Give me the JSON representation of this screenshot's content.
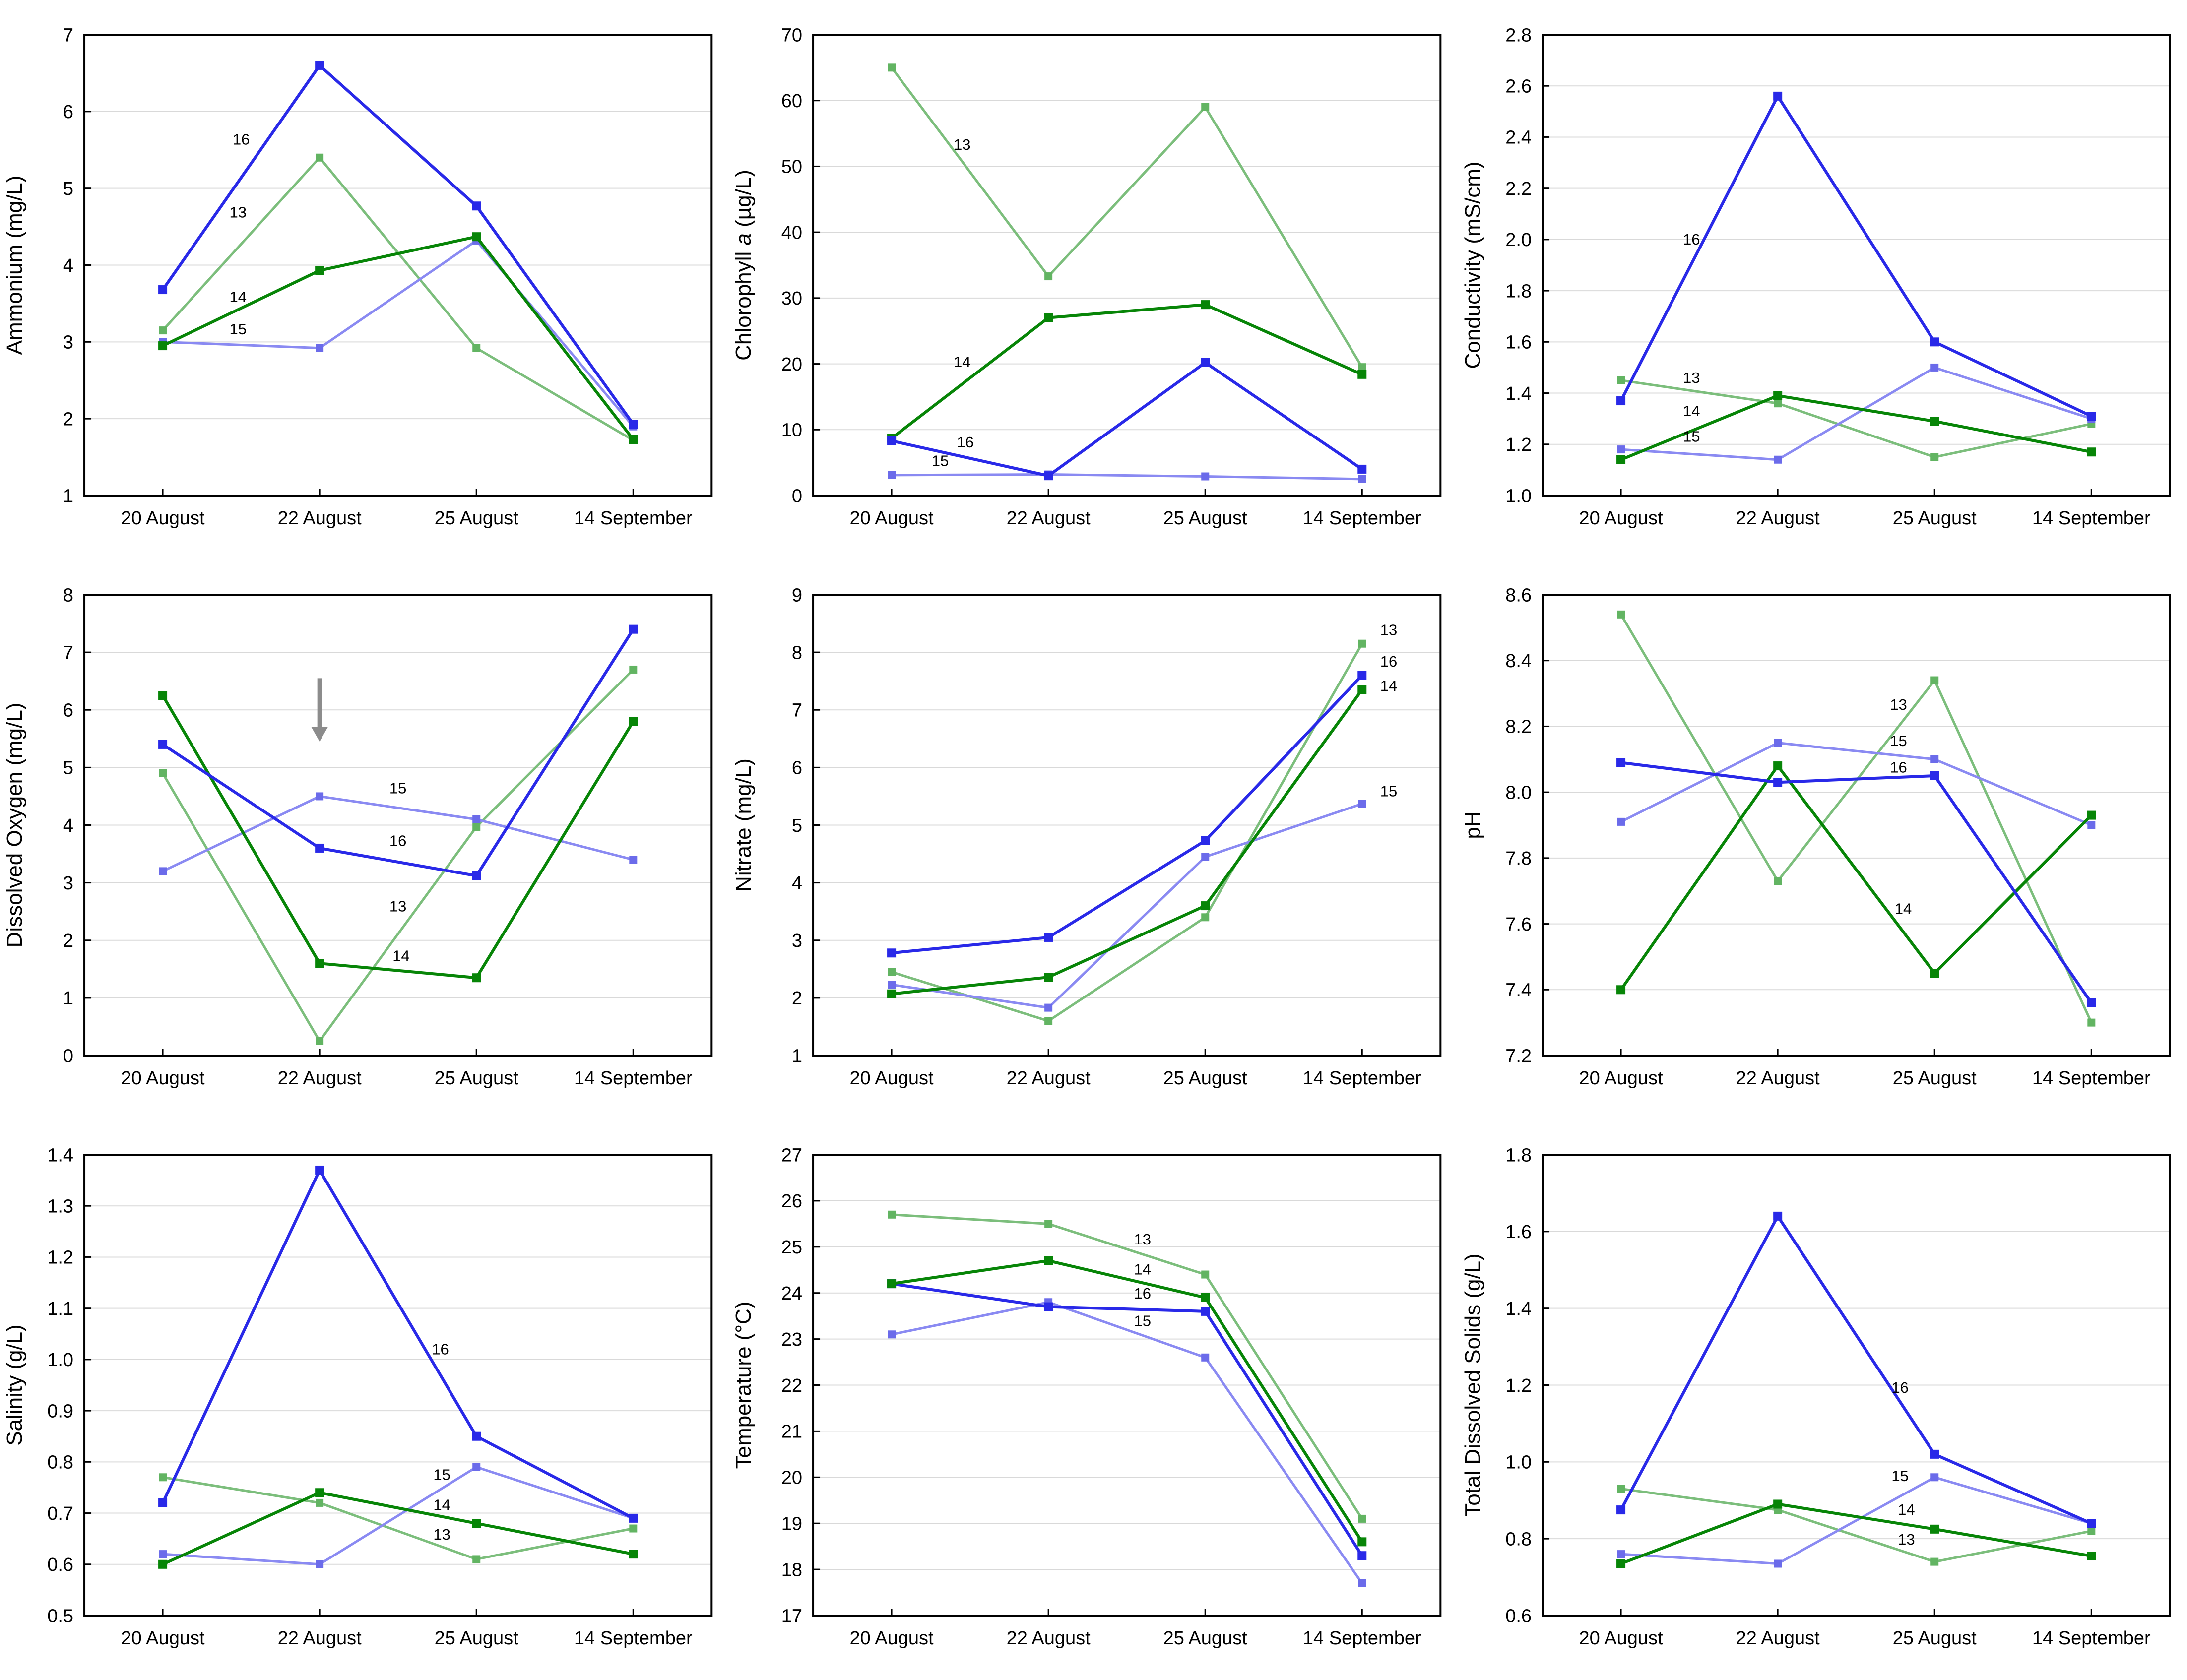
{
  "figure": {
    "background": "#ffffff",
    "x_categories": [
      "20 August",
      "22 August",
      "25 August",
      "14 September"
    ],
    "sites": {
      "13": {
        "line_color": "#7CBE7C",
        "marker_color": "#62B462",
        "line_width": 5,
        "marker_size": 16
      },
      "14": {
        "line_color": "#078507",
        "marker_color": "#078507",
        "line_width": 6,
        "marker_size": 18
      },
      "15": {
        "line_color": "#8A8AF2",
        "marker_color": "#6B6BEA",
        "line_width": 5,
        "marker_size": 16
      },
      "16": {
        "line_color": "#2929E8",
        "marker_color": "#2929E8",
        "line_width": 6,
        "marker_size": 18
      }
    },
    "grid_color": "#D9D9D9",
    "axis_color": "#000000",
    "annotation_arrow_color": "#8C8C8C",
    "label_color": "#1A1A1A"
  },
  "chart_data": [
    {
      "id": "ammonium",
      "type": "line",
      "ylabel_parts": [
        {
          "text": "Ammonium (mg/L)"
        }
      ],
      "ylim": [
        1,
        7
      ],
      "ytick_step": 1,
      "ytick_decimals": 0,
      "categories": [
        "20 August",
        "22 August",
        "25 August",
        "14 September"
      ],
      "series": [
        {
          "site": "13",
          "values": [
            3.15,
            5.4,
            2.92,
            1.72
          ]
        },
        {
          "site": "15",
          "values": [
            3.0,
            2.92,
            4.32,
            1.9
          ]
        },
        {
          "site": "14",
          "values": [
            2.95,
            3.93,
            4.37,
            1.73
          ]
        },
        {
          "site": "16",
          "values": [
            3.68,
            6.6,
            4.77,
            1.93
          ]
        }
      ],
      "point_labels": [
        {
          "text": "16",
          "x": 0.5,
          "y": 5.57
        },
        {
          "text": "13",
          "x": 0.48,
          "y": 4.62
        },
        {
          "text": "14",
          "x": 0.48,
          "y": 3.52
        },
        {
          "text": "15",
          "x": 0.48,
          "y": 3.1
        }
      ]
    },
    {
      "id": "chlorophyll",
      "type": "line",
      "ylabel_parts": [
        {
          "text": "Chlorophyll "
        },
        {
          "text": "a",
          "italic": true
        },
        {
          "text": " (µg/L)"
        }
      ],
      "ylim": [
        0,
        70
      ],
      "ytick_step": 10,
      "ytick_decimals": 0,
      "categories": [
        "20 August",
        "22 August",
        "25 August",
        "14 September"
      ],
      "series": [
        {
          "site": "13",
          "values": [
            65,
            33.3,
            59,
            19.5
          ]
        },
        {
          "site": "15",
          "values": [
            3.1,
            3.2,
            2.9,
            2.5
          ]
        },
        {
          "site": "14",
          "values": [
            8.7,
            27,
            29,
            18.4
          ]
        },
        {
          "site": "16",
          "values": [
            8.3,
            3.0,
            20.2,
            4.0
          ]
        }
      ],
      "point_labels": [
        {
          "text": "13",
          "x": 0.45,
          "y": 52.5
        },
        {
          "text": "14",
          "x": 0.45,
          "y": 19.5
        },
        {
          "text": "16",
          "x": 0.47,
          "y": 7.3
        },
        {
          "text": "15",
          "x": 0.31,
          "y": 4.5
        }
      ]
    },
    {
      "id": "conductivity",
      "type": "line",
      "ylabel_parts": [
        {
          "text": "Conductivity (mS/cm)"
        }
      ],
      "ylim": [
        1.0,
        2.8
      ],
      "ytick_step": 0.2,
      "ytick_decimals": 1,
      "categories": [
        "20 August",
        "22 August",
        "25 August",
        "14 September"
      ],
      "series": [
        {
          "site": "13",
          "values": [
            1.45,
            1.36,
            1.15,
            1.28
          ]
        },
        {
          "site": "15",
          "values": [
            1.18,
            1.14,
            1.5,
            1.3
          ]
        },
        {
          "site": "14",
          "values": [
            1.14,
            1.39,
            1.29,
            1.17
          ]
        },
        {
          "site": "16",
          "values": [
            1.37,
            2.56,
            1.6,
            1.31
          ]
        }
      ],
      "point_labels": [
        {
          "text": "16",
          "x": 0.45,
          "y": 1.98
        },
        {
          "text": "13",
          "x": 0.45,
          "y": 1.44
        },
        {
          "text": "14",
          "x": 0.45,
          "y": 1.31
        },
        {
          "text": "15",
          "x": 0.45,
          "y": 1.21
        }
      ]
    },
    {
      "id": "dissolved-oxygen",
      "type": "line",
      "ylabel_parts": [
        {
          "text": "Dissolved Oxygen (mg/L)"
        }
      ],
      "ylim": [
        0,
        8
      ],
      "ytick_step": 1,
      "ytick_decimals": 0,
      "categories": [
        "20 August",
        "22 August",
        "25 August",
        "14 September"
      ],
      "series": [
        {
          "site": "13",
          "values": [
            4.9,
            0.25,
            3.97,
            6.7
          ]
        },
        {
          "site": "15",
          "values": [
            3.2,
            4.5,
            4.1,
            3.4
          ]
        },
        {
          "site": "14",
          "values": [
            6.25,
            1.6,
            1.35,
            5.8
          ]
        },
        {
          "site": "16",
          "values": [
            5.4,
            3.6,
            3.12,
            7.4
          ]
        }
      ],
      "point_labels": [
        {
          "text": "15",
          "x": 1.5,
          "y": 4.55
        },
        {
          "text": "16",
          "x": 1.5,
          "y": 3.64
        },
        {
          "text": "13",
          "x": 1.5,
          "y": 2.5
        },
        {
          "text": "14",
          "x": 1.52,
          "y": 1.64
        }
      ],
      "annotations": [
        {
          "type": "down-arrow",
          "x": 1,
          "y_from": 6.55,
          "y_to": 5.45
        }
      ]
    },
    {
      "id": "nitrate",
      "type": "line",
      "ylabel_parts": [
        {
          "text": "Nitrate (mg/L)"
        }
      ],
      "ylim": [
        1,
        9
      ],
      "ytick_step": 1,
      "ytick_decimals": 0,
      "categories": [
        "20 August",
        "22 August",
        "25 August",
        "14 September"
      ],
      "series": [
        {
          "site": "13",
          "values": [
            2.45,
            1.6,
            3.4,
            8.15
          ]
        },
        {
          "site": "15",
          "values": [
            2.23,
            1.83,
            4.45,
            5.37
          ]
        },
        {
          "site": "14",
          "values": [
            2.07,
            2.36,
            3.6,
            7.35
          ]
        },
        {
          "site": "16",
          "values": [
            2.78,
            3.05,
            4.73,
            7.6
          ]
        }
      ],
      "point_labels": [
        {
          "text": "13",
          "x": 3.17,
          "y": 8.3
        },
        {
          "text": "16",
          "x": 3.17,
          "y": 7.75
        },
        {
          "text": "14",
          "x": 3.17,
          "y": 7.33
        },
        {
          "text": "15",
          "x": 3.17,
          "y": 5.5
        }
      ]
    },
    {
      "id": "ph",
      "type": "line",
      "ylabel_parts": [
        {
          "text": "pH"
        }
      ],
      "ylim": [
        7.2,
        8.6
      ],
      "ytick_step": 0.2,
      "ytick_decimals": 1,
      "categories": [
        "20 August",
        "22 August",
        "25 August",
        "14 September"
      ],
      "series": [
        {
          "site": "13",
          "values": [
            8.54,
            7.73,
            8.34,
            7.3
          ]
        },
        {
          "site": "15",
          "values": [
            7.91,
            8.15,
            8.1,
            7.9
          ]
        },
        {
          "site": "14",
          "values": [
            7.4,
            8.08,
            7.45,
            7.93
          ]
        },
        {
          "site": "16",
          "values": [
            8.09,
            8.03,
            8.05,
            7.36
          ]
        }
      ],
      "point_labels": [
        {
          "text": "13",
          "x": 1.77,
          "y": 8.25
        },
        {
          "text": "15",
          "x": 1.77,
          "y": 8.14
        },
        {
          "text": "16",
          "x": 1.77,
          "y": 8.06
        },
        {
          "text": "14",
          "x": 1.8,
          "y": 7.63
        }
      ]
    },
    {
      "id": "salinity",
      "type": "line",
      "ylabel_parts": [
        {
          "text": "Salinity (g/L)"
        }
      ],
      "ylim": [
        0.5,
        1.4
      ],
      "ytick_step": 0.1,
      "ytick_decimals": 1,
      "categories": [
        "20 August",
        "22 August",
        "25 August",
        "14 September"
      ],
      "series": [
        {
          "site": "13",
          "values": [
            0.77,
            0.72,
            0.61,
            0.67
          ]
        },
        {
          "site": "15",
          "values": [
            0.62,
            0.6,
            0.79,
            0.69
          ]
        },
        {
          "site": "14",
          "values": [
            0.6,
            0.74,
            0.68,
            0.62
          ]
        },
        {
          "site": "16",
          "values": [
            0.72,
            1.37,
            0.85,
            0.69
          ]
        }
      ],
      "point_labels": [
        {
          "text": "16",
          "x": 1.77,
          "y": 1.01
        },
        {
          "text": "15",
          "x": 1.78,
          "y": 0.765
        },
        {
          "text": "14",
          "x": 1.78,
          "y": 0.706
        },
        {
          "text": "13",
          "x": 1.78,
          "y": 0.648
        }
      ]
    },
    {
      "id": "temperature",
      "type": "line",
      "ylabel_parts": [
        {
          "text": "Temperature (°C)"
        }
      ],
      "ylim": [
        17,
        27
      ],
      "ytick_step": 1,
      "ytick_decimals": 0,
      "categories": [
        "20 August",
        "22 August",
        "25 August",
        "14 September"
      ],
      "series": [
        {
          "site": "13",
          "values": [
            25.7,
            25.5,
            24.4,
            19.1
          ]
        },
        {
          "site": "15",
          "values": [
            23.1,
            23.8,
            22.6,
            17.7
          ]
        },
        {
          "site": "16",
          "values": [
            24.2,
            23.7,
            23.6,
            18.3
          ]
        },
        {
          "site": "14",
          "values": [
            24.2,
            24.7,
            23.9,
            18.6
          ]
        }
      ],
      "point_labels": [
        {
          "text": "13",
          "x": 1.6,
          "y": 25.05
        },
        {
          "text": "14",
          "x": 1.6,
          "y": 24.4
        },
        {
          "text": "16",
          "x": 1.6,
          "y": 23.88
        },
        {
          "text": "15",
          "x": 1.6,
          "y": 23.28
        }
      ]
    },
    {
      "id": "tds",
      "type": "line",
      "ylabel_parts": [
        {
          "text": "Total Dissolved Solids (g/L)"
        }
      ],
      "ylim": [
        0.6,
        1.8
      ],
      "ytick_step": 0.2,
      "ytick_decimals": 1,
      "categories": [
        "20 August",
        "22 August",
        "25 August",
        "14 September"
      ],
      "series": [
        {
          "site": "13",
          "values": [
            0.93,
            0.875,
            0.74,
            0.82
          ]
        },
        {
          "site": "15",
          "values": [
            0.76,
            0.735,
            0.96,
            0.84
          ]
        },
        {
          "site": "14",
          "values": [
            0.735,
            0.89,
            0.825,
            0.755
          ]
        },
        {
          "site": "16",
          "values": [
            0.875,
            1.64,
            1.02,
            0.84
          ]
        }
      ],
      "point_labels": [
        {
          "text": "16",
          "x": 1.78,
          "y": 1.18
        },
        {
          "text": "15",
          "x": 1.78,
          "y": 0.95
        },
        {
          "text": "14",
          "x": 1.82,
          "y": 0.862
        },
        {
          "text": "13",
          "x": 1.82,
          "y": 0.785
        }
      ]
    }
  ]
}
